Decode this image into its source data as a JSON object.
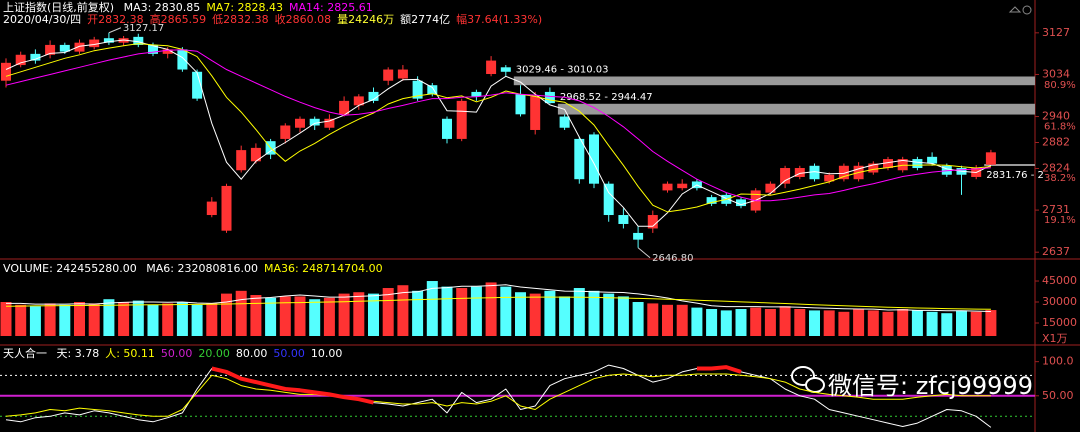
{
  "chart_data": [
    {
      "type": "candlestick",
      "title": "上证指数(日线,前复权)",
      "info": [
        {
          "text": "2020/04/30/四",
          "color": "#ffffff"
        },
        {
          "text": "开2832.38",
          "color": "#ff3333"
        },
        {
          "text": "高2865.59",
          "color": "#ff3333"
        },
        {
          "text": "低2832.38",
          "color": "#ff3333"
        },
        {
          "text": "收2860.08",
          "color": "#ff3333"
        },
        {
          "text": "量24246万",
          "color": "#ffff33"
        },
        {
          "text": "额2774亿",
          "color": "#ffffff"
        },
        {
          "text": "幅37.64(1.33%)",
          "color": "#ff3333"
        }
      ],
      "colors": {
        "up": "#ff3333",
        "down": "#55ffff"
      },
      "ylim": [
        2624,
        3178
      ],
      "yticks": [
        3127,
        3034,
        2940,
        2882,
        2824,
        2731,
        2637
      ],
      "y2lim": [
        1.7,
        115.2
      ],
      "y2ticks": [
        {
          "value": 80.9,
          "label": "80.9%"
        },
        {
          "value": 61.8,
          "label": "61.8%"
        },
        {
          "value": 38.2,
          "label": "38.2%"
        },
        {
          "value": 19.1,
          "label": "19.1%"
        }
      ],
      "open": [
        3020,
        3055,
        3080,
        3078,
        3100,
        3085,
        3095,
        3115,
        3105,
        3118,
        3100,
        3080,
        3090,
        3040,
        2720,
        2685,
        2820,
        2840,
        2885,
        2890,
        2915,
        2935,
        2915,
        2945,
        2965,
        2995,
        3020,
        3025,
        3020,
        3010,
        2935,
        2890,
        2995,
        3035,
        3050,
        2990,
        2910,
        2995,
        2940,
        2890,
        2900,
        2790,
        2720,
        2680,
        2690,
        2775,
        2780,
        2795,
        2760,
        2765,
        2755,
        2730,
        2770,
        2790,
        2805,
        2830,
        2795,
        2800,
        2800,
        2815,
        2825,
        2820,
        2845,
        2850,
        2830,
        2825,
        2805,
        2832.38
      ],
      "high": [
        3070,
        3085,
        3090,
        3110,
        3105,
        3112,
        3118,
        3127.17,
        3120,
        3125,
        3105,
        3095,
        3095,
        3045,
        2760,
        2790,
        2875,
        2880,
        2890,
        2925,
        2940,
        2940,
        2945,
        2985,
        2990,
        3005,
        3050,
        3055,
        3030,
        3015,
        2940,
        2980,
        3000,
        3075,
        3055,
        3010.03,
        2995,
        3005,
        2944.47,
        2895,
        2905,
        2795,
        2735,
        2695,
        2730,
        2795,
        2800,
        2800,
        2765,
        2770,
        2760,
        2780,
        2795,
        2830,
        2830,
        2835,
        2815,
        2835,
        2838,
        2840,
        2850,
        2850,
        2850,
        2860,
        2835,
        2830,
        2831.76,
        2865.59
      ],
      "low": [
        3005,
        3050,
        3058,
        3070,
        3080,
        3080,
        3090,
        3100,
        3098,
        3095,
        3075,
        3070,
        3040,
        2975,
        2715,
        2680,
        2815,
        2835,
        2845,
        2880,
        2905,
        2910,
        2910,
        2940,
        2955,
        2970,
        3010,
        3020,
        2975,
        2985,
        2880,
        2885,
        2975,
        3030,
        3029.46,
        2940,
        2900,
        2968.52,
        2910,
        2790,
        2780,
        2705,
        2690,
        2646.8,
        2680,
        2770,
        2775,
        2775,
        2740,
        2740,
        2735,
        2725,
        2765,
        2780,
        2800,
        2795,
        2790,
        2795,
        2795,
        2810,
        2820,
        2815,
        2820,
        2830,
        2805,
        2765,
        2800,
        2832.38
      ],
      "close": [
        3060,
        3078,
        3065,
        3100,
        3085,
        3105,
        3112,
        3105,
        3115,
        3100,
        3080,
        3090,
        3045,
        2980,
        2750,
        2785,
        2865,
        2870,
        2855,
        2920,
        2935,
        2920,
        2935,
        2975,
        2985,
        2975,
        3045,
        3045,
        2980,
        2990,
        2890,
        2975,
        2985,
        3065,
        3040,
        2945,
        2985,
        2970,
        2915,
        2800,
        2790,
        2720,
        2700,
        2665,
        2720,
        2790,
        2790,
        2780,
        2745,
        2745,
        2740,
        2775,
        2790,
        2825,
        2825,
        2800,
        2810,
        2830,
        2830,
        2835,
        2845,
        2845,
        2825,
        2835,
        2810,
        2810,
        2825,
        2860.08
      ],
      "series": [
        {
          "name": "MA3: 2830.85",
          "color": "#ffffff",
          "values": [
            3045,
            3060,
            3068,
            3081,
            3083,
            3097,
            3101,
            3107,
            3111,
            3107,
            3098,
            3090,
            3072,
            3038,
            2925,
            2838,
            2800,
            2840,
            2863,
            2882,
            2903,
            2925,
            2930,
            2943,
            2965,
            2978,
            3002,
            3022,
            3023,
            3005,
            2953,
            2952,
            2950,
            3008,
            3030,
            3017,
            2990,
            2966,
            2956,
            2894,
            2835,
            2770,
            2737,
            2695,
            2695,
            2725,
            2767,
            2787,
            2772,
            2757,
            2743,
            2753,
            2768,
            2797,
            2813,
            2817,
            2812,
            2813,
            2823,
            2832,
            2837,
            2842,
            2838,
            2835,
            2823,
            2818,
            2815,
            2830.85
          ]
        },
        {
          "name": "MA7: 2828.43",
          "color": "#ffff00",
          "values": [
            3030,
            3040,
            3050,
            3060,
            3070,
            3078,
            3087,
            3093,
            3098,
            3103,
            3100,
            3098,
            3090,
            3074,
            3031,
            2983,
            2950,
            2911,
            2870,
            2840,
            2863,
            2880,
            2900,
            2918,
            2934,
            2948,
            2968,
            2980,
            2986,
            2991,
            2982,
            2986,
            2973,
            2983,
            2997,
            2990,
            2985,
            2977,
            2972,
            2952,
            2921,
            2875,
            2831,
            2784,
            2742,
            2727,
            2732,
            2738,
            2748,
            2755,
            2767,
            2766,
            2764,
            2771,
            2778,
            2786,
            2794,
            2806,
            2815,
            2822,
            2826,
            2831,
            2831,
            2832,
            2831,
            2828,
            2825,
            2828.43
          ]
        },
        {
          "name": "MA14: 2825.61",
          "color": "#ff00ff",
          "values": [
            3010,
            3018,
            3026,
            3034,
            3042,
            3050,
            3058,
            3066,
            3073,
            3080,
            3084,
            3088,
            3089,
            3086,
            3065,
            3045,
            3030,
            3015,
            3000,
            2985,
            2972,
            2960,
            2950,
            2943,
            2945,
            2950,
            2958,
            2965,
            2973,
            2980,
            2980,
            2983,
            2984,
            2988,
            2993,
            2990,
            2988,
            2985,
            2983,
            2975,
            2960,
            2940,
            2917,
            2890,
            2862,
            2840,
            2820,
            2800,
            2785,
            2770,
            2760,
            2752,
            2752,
            2755,
            2760,
            2765,
            2768,
            2775,
            2783,
            2790,
            2798,
            2806,
            2811,
            2816,
            2819,
            2821,
            2823,
            2825.61
          ]
        }
      ],
      "gaps": [
        {
          "label": "3029.46 - 3010.03",
          "top": 3029.46,
          "bottom": 3010.03
        },
        {
          "label": "2968.52 - 2944.47",
          "top": 2968.52,
          "bottom": 2944.47
        },
        {
          "label": "2831.76 - 2",
          "top": 2831.76
        }
      ],
      "annotations": [
        {
          "label": "3127.17",
          "value": 3127.17
        },
        {
          "label": "2646.80",
          "value": 2646.8
        }
      ]
    },
    {
      "type": "volume",
      "title": "VOLUME: 242455280.00",
      "color": "#ffffff",
      "ylim": [
        5700,
        58600
      ],
      "yticks": [
        45000,
        30000,
        15000
      ],
      "unit_label": "X1万",
      "values": [
        30000,
        28000,
        27000,
        29000,
        28000,
        30000,
        29000,
        32000,
        30000,
        31000,
        28000,
        29000,
        30000,
        28000,
        29000,
        36000,
        38000,
        35000,
        33000,
        34000,
        34000,
        32000,
        33000,
        36000,
        37000,
        36000,
        40000,
        42000,
        38000,
        45000,
        41000,
        40000,
        41000,
        44000,
        41000,
        37000,
        36000,
        38000,
        34000,
        40000,
        38000,
        36000,
        34000,
        30000,
        29000,
        28000,
        28000,
        26000,
        25000,
        24000,
        25000,
        26000,
        25000,
        27000,
        25000,
        24000,
        24000,
        23000,
        25000,
        24000,
        23000,
        25000,
        24000,
        23000,
        22000,
        24000,
        23000,
        24246
      ],
      "series": [
        {
          "name": "MA6: 232080816.00",
          "color": "#ffffff",
          "values": [
            29000,
            29000,
            28500,
            28500,
            28500,
            28700,
            28500,
            29300,
            29700,
            30000,
            30000,
            29800,
            30000,
            29300,
            29000,
            30000,
            31700,
            32700,
            33200,
            34300,
            35000,
            34300,
            33500,
            33500,
            34000,
            34500,
            35300,
            36700,
            37300,
            39700,
            40300,
            41300,
            41200,
            41700,
            42300,
            40700,
            39700,
            38800,
            37800,
            37700,
            37300,
            37000,
            36800,
            35800,
            34500,
            32900,
            30800,
            29200,
            27300,
            26700,
            26700,
            26700,
            26500,
            26500,
            26200,
            25800,
            25600,
            25200,
            25000,
            24900,
            24300,
            24400,
            24000,
            24000,
            23700,
            23700,
            23500,
            23208.08
          ]
        },
        {
          "name": "MA36: 248714704.00",
          "color": "#ffff00",
          "values": [
            27000,
            27100,
            27200,
            27300,
            27400,
            27500,
            27600,
            27700,
            27800,
            27900,
            28000,
            28100,
            28200,
            28300,
            28400,
            28600,
            28800,
            29000,
            29200,
            29400,
            29600,
            29800,
            30000,
            30200,
            30500,
            30800,
            31100,
            31400,
            31700,
            32000,
            32300,
            32600,
            32900,
            33100,
            33300,
            33400,
            33500,
            33500,
            33500,
            33400,
            33300,
            33100,
            32900,
            32600,
            32300,
            32000,
            31700,
            31300,
            30900,
            30500,
            30100,
            29700,
            29300,
            28900,
            28500,
            28100,
            27700,
            27300,
            26900,
            26600,
            26300,
            26000,
            25700,
            25500,
            25300,
            25100,
            24950,
            24871.47
          ]
        }
      ]
    },
    {
      "type": "line",
      "title": "天人合一",
      "color": "#ffffff",
      "ylim": [
        -3,
        120
      ],
      "yticks": [
        {
          "value": 100,
          "label": "100.0"
        },
        {
          "value": 50,
          "label": "50.00"
        }
      ],
      "series": [
        {
          "name": "天: 3.78",
          "color": "#ffffff",
          "width": 1,
          "values": [
            15,
            12,
            18,
            20,
            25,
            22,
            28,
            25,
            20,
            15,
            12,
            18,
            25,
            60,
            90,
            85,
            75,
            70,
            65,
            60,
            58,
            55,
            52,
            48,
            45,
            40,
            38,
            35,
            40,
            45,
            25,
            55,
            40,
            45,
            60,
            30,
            35,
            65,
            75,
            80,
            85,
            95,
            90,
            80,
            70,
            75,
            85,
            90,
            90,
            92,
            85,
            80,
            75,
            60,
            50,
            45,
            30,
            25,
            20,
            15,
            10,
            5,
            10,
            20,
            30,
            28,
            20,
            3.78
          ]
        },
        {
          "name": "人: 50.11",
          "color": "#ffff00",
          "width": 1,
          "values": [
            20,
            22,
            25,
            30,
            28,
            32,
            30,
            28,
            25,
            22,
            20,
            20,
            30,
            55,
            80,
            75,
            65,
            60,
            58,
            55,
            52,
            52,
            50,
            48,
            45,
            42,
            40,
            38,
            38,
            40,
            35,
            40,
            38,
            42,
            50,
            35,
            30,
            45,
            55,
            65,
            75,
            80,
            82,
            80,
            78,
            80,
            80,
            82,
            82,
            82,
            80,
            78,
            75,
            70,
            60,
            55,
            52,
            50,
            48,
            45,
            45,
            45,
            48,
            50,
            52,
            50,
            50,
            50.11
          ]
        },
        {
          "color": "#ff1a1a",
          "width": 4,
          "values": [
            null,
            null,
            null,
            null,
            null,
            null,
            null,
            null,
            null,
            null,
            null,
            null,
            null,
            null,
            90,
            85,
            75,
            70,
            65,
            60,
            58,
            55,
            52,
            48,
            45,
            40,
            null,
            null,
            null,
            null,
            null,
            null,
            null,
            null,
            null,
            null,
            null,
            null,
            null,
            null,
            null,
            null,
            null,
            null,
            null,
            null,
            null,
            90,
            90,
            92,
            85,
            null,
            null,
            null,
            null,
            null,
            null,
            null,
            null,
            null,
            null,
            null,
            null,
            null,
            null,
            null,
            null,
            null
          ]
        }
      ],
      "params": [
        {
          "value": 50,
          "label": "50.00",
          "color": "#d020d0",
          "style": "solid"
        },
        {
          "value": 20,
          "label": "20.00",
          "color": "#33cc33",
          "style": "dotted"
        },
        {
          "value": 80,
          "label": "80.00",
          "color": "#ffffff",
          "style": "dotted"
        },
        {
          "value": 50,
          "label": "50.00",
          "color": "#3333ff",
          "style": "none"
        },
        {
          "value": 10,
          "label": "10.00",
          "color": "#ffffff",
          "style": "none"
        }
      ]
    }
  ],
  "watermark": "微信号: zfcj99999"
}
